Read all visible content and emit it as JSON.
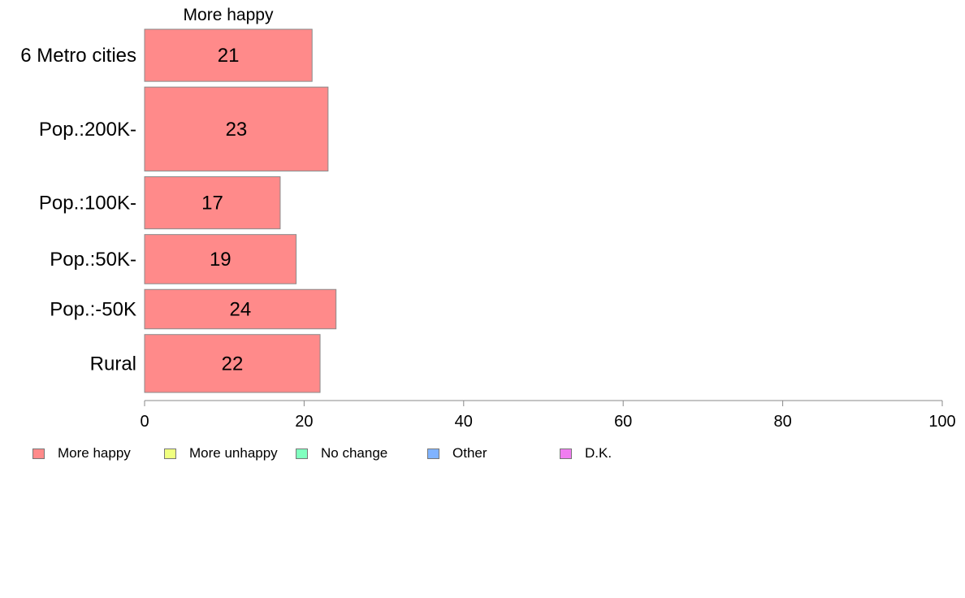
{
  "chart_data": {
    "type": "bar",
    "orientation": "horizontal",
    "stacked": true,
    "title": "More happy",
    "categories": [
      "6 Metro cities",
      "Pop.:200K-",
      "Pop.:100K-",
      "Pop.:50K-",
      "Pop.:-50K",
      "Rural"
    ],
    "series": [
      {
        "name": "More happy",
        "color": "#ff8a8a",
        "values": [
          21,
          23,
          17,
          19,
          24,
          22
        ]
      }
    ],
    "data_labels": [
      "21",
      "23",
      "17",
      "19",
      "24",
      "22"
    ],
    "xlim": [
      0,
      100
    ],
    "xticks": [
      "0",
      "20",
      "40",
      "60",
      "80",
      "100"
    ],
    "bar_weights": [
      0.9,
      1.45,
      0.9,
      0.85,
      0.68,
      1.0
    ],
    "grid": false,
    "legend_position": "bottom-left"
  },
  "legend": [
    {
      "label": "More happy",
      "color": "#ff8a8a"
    },
    {
      "label": "More unhappy",
      "color": "#f0ff80"
    },
    {
      "label": "No change",
      "color": "#80ffbf"
    },
    {
      "label": "Other",
      "color": "#80b3ff"
    },
    {
      "label": "D.K.",
      "color": "#f07df0"
    }
  ]
}
